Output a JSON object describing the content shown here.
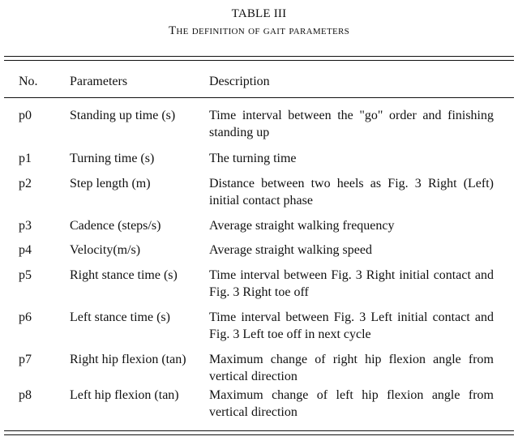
{
  "caption": {
    "number": "TABLE III",
    "title": "The definition of gait parameters"
  },
  "table": {
    "headers": [
      "No.",
      "Parameters",
      "Description"
    ],
    "rows": [
      {
        "no": "p0",
        "parameter": "Standing up time (s)",
        "description": "Time interval between the \"go\" order and finishing standing up"
      },
      {
        "no": "p1",
        "parameter": "Turning time (s)",
        "description": "The turning time"
      },
      {
        "no": "p2",
        "parameter": "Step length (m)",
        "description": "Distance between two heels as Fig. 3 Right (Left) initial contact phase"
      },
      {
        "no": "p3",
        "parameter": "Cadence (steps/s)",
        "description": "Average straight walking frequency"
      },
      {
        "no": "p4",
        "parameter": "Velocity(m/s)",
        "description": "Average straight walking speed"
      },
      {
        "no": "p5",
        "parameter": "Right stance time (s)",
        "description": "Time interval between Fig. 3 Right initial contact and Fig. 3 Right toe off"
      },
      {
        "no": "p6",
        "parameter": "Left stance time (s)",
        "description": "Time interval between Fig. 3 Left initial contact and Fig. 3 Left toe off in next cycle"
      },
      {
        "no": "p7",
        "parameter": "Right hip flexion (tan)",
        "description": "Maximum change of right hip flexion angle from vertical direction"
      },
      {
        "no": "p8",
        "parameter": "Left hip flexion (tan)",
        "description": "Maximum change of left hip flexion angle from vertical direction"
      }
    ]
  }
}
